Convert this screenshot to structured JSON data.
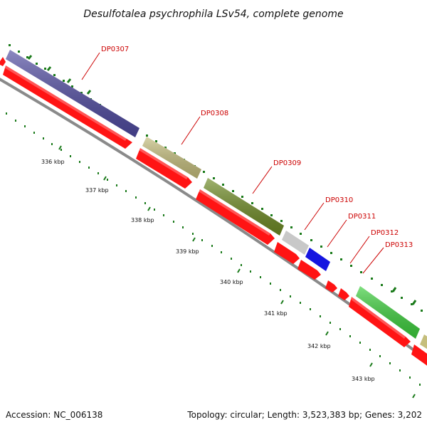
{
  "header": {
    "title": "Desulfotalea psychrophila LSv54, complete genome"
  },
  "footer": {
    "accession": "Accession: NC_006138",
    "summary": "Topology: circular; Length: 3,523,383 bp; Genes: 3,202"
  },
  "genes": [
    {
      "id": "DP0307",
      "color": "#4f4aa0"
    },
    {
      "id": "DP0308",
      "color": "#c5be7c"
    },
    {
      "id": "DP0309",
      "color": "#6e8a24"
    },
    {
      "id": "DP0310",
      "color": "#c8c8c8"
    },
    {
      "id": "DP0311",
      "color": "#1515e0"
    },
    {
      "id": "DP0312",
      "color": "#ff1a1a"
    },
    {
      "id": "DP0313",
      "color": "#3ccf3c"
    }
  ],
  "ticks": [
    "336 kbp",
    "337 kbp",
    "338 kbp",
    "339 kbp",
    "340 kbp",
    "341 kbp",
    "342 kbp",
    "343 kbp"
  ],
  "colors": {
    "cds": "#ff1414",
    "backbone": "#8a8a8a",
    "gc_dots": "#1a7a1a"
  }
}
